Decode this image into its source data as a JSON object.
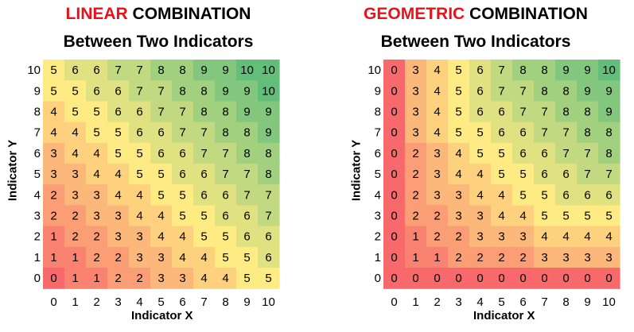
{
  "chart_data": [
    {
      "type": "heatmap",
      "title_highlight": "LINEAR",
      "title_rest": " COMBINATION",
      "subtitle": "Between Two Indicators",
      "xlabel": "Indicator X",
      "ylabel": "Indicator Y",
      "x": [
        0,
        1,
        2,
        3,
        4,
        5,
        6,
        7,
        8,
        9,
        10
      ],
      "y": [
        10,
        9,
        8,
        7,
        6,
        5,
        4,
        3,
        2,
        1,
        0
      ],
      "values": [
        [
          5,
          6,
          6,
          7,
          7,
          8,
          8,
          9,
          9,
          10,
          10
        ],
        [
          5,
          5,
          6,
          6,
          7,
          7,
          8,
          8,
          9,
          9,
          10
        ],
        [
          4,
          5,
          5,
          6,
          6,
          7,
          7,
          8,
          8,
          9,
          9
        ],
        [
          4,
          4,
          5,
          5,
          6,
          6,
          7,
          7,
          8,
          8,
          9
        ],
        [
          3,
          4,
          4,
          5,
          5,
          6,
          6,
          7,
          7,
          8,
          8
        ],
        [
          3,
          3,
          4,
          4,
          5,
          5,
          6,
          6,
          7,
          7,
          8
        ],
        [
          2,
          3,
          3,
          4,
          4,
          5,
          5,
          6,
          6,
          7,
          7
        ],
        [
          2,
          2,
          3,
          3,
          4,
          4,
          5,
          5,
          6,
          6,
          7
        ],
        [
          1,
          2,
          2,
          3,
          3,
          4,
          4,
          5,
          5,
          6,
          6
        ],
        [
          1,
          1,
          2,
          2,
          3,
          3,
          4,
          4,
          5,
          5,
          6
        ],
        [
          0,
          1,
          1,
          2,
          2,
          3,
          3,
          4,
          4,
          5,
          5
        ]
      ],
      "color_scale": [
        "#f8696b",
        "#ffeb84",
        "#63be7b"
      ]
    },
    {
      "type": "heatmap",
      "title_highlight": "GEOMETRIC",
      "title_rest": " COMBINATION",
      "subtitle": "Between Two Indicators",
      "xlabel": "Indicator X",
      "ylabel": "Indicator Y",
      "x": [
        0,
        1,
        2,
        3,
        4,
        5,
        6,
        7,
        8,
        9,
        10
      ],
      "y": [
        10,
        9,
        8,
        7,
        6,
        5,
        4,
        3,
        2,
        1,
        0
      ],
      "values": [
        [
          0,
          3,
          4,
          5,
          6,
          7,
          8,
          8,
          9,
          9,
          10
        ],
        [
          0,
          3,
          4,
          5,
          6,
          7,
          7,
          8,
          8,
          9,
          9
        ],
        [
          0,
          3,
          4,
          5,
          6,
          6,
          7,
          7,
          8,
          8,
          9
        ],
        [
          0,
          3,
          4,
          5,
          5,
          6,
          6,
          7,
          7,
          8,
          8
        ],
        [
          0,
          2,
          3,
          4,
          5,
          5,
          6,
          6,
          7,
          7,
          8
        ],
        [
          0,
          2,
          3,
          4,
          4,
          5,
          5,
          6,
          6,
          7,
          7
        ],
        [
          0,
          2,
          3,
          3,
          4,
          4,
          5,
          5,
          6,
          6,
          6
        ],
        [
          0,
          2,
          2,
          3,
          3,
          4,
          4,
          5,
          5,
          5,
          5
        ],
        [
          0,
          1,
          2,
          2,
          3,
          3,
          3,
          4,
          4,
          4,
          4
        ],
        [
          0,
          1,
          1,
          2,
          2,
          2,
          2,
          3,
          3,
          3,
          3
        ],
        [
          0,
          0,
          0,
          0,
          0,
          0,
          0,
          0,
          0,
          0,
          0
        ]
      ],
      "color_scale": [
        "#f8696b",
        "#ffeb84",
        "#63be7b"
      ]
    }
  ]
}
